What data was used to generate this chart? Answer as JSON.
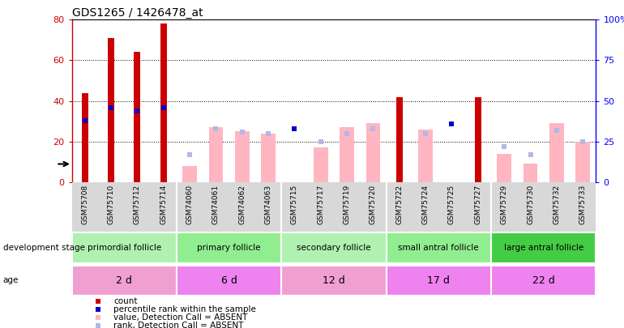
{
  "title": "GDS1265 / 1426478_at",
  "samples": [
    "GSM75708",
    "GSM75710",
    "GSM75712",
    "GSM75714",
    "GSM74060",
    "GSM74061",
    "GSM74062",
    "GSM74063",
    "GSM75715",
    "GSM75717",
    "GSM75719",
    "GSM75720",
    "GSM75722",
    "GSM75724",
    "GSM75725",
    "GSM75727",
    "GSM75729",
    "GSM75730",
    "GSM75732",
    "GSM75733"
  ],
  "count": [
    44,
    71,
    64,
    78,
    0,
    0,
    0,
    0,
    0,
    0,
    0,
    0,
    42,
    0,
    0,
    42,
    0,
    0,
    0,
    0
  ],
  "percentile_rank": [
    38,
    46,
    44,
    46,
    0,
    0,
    0,
    0,
    33,
    0,
    0,
    0,
    0,
    0,
    36,
    0,
    0,
    0,
    0,
    0
  ],
  "value_absent": [
    0,
    0,
    0,
    0,
    8,
    27,
    25,
    24,
    0,
    17,
    27,
    29,
    0,
    26,
    0,
    0,
    14,
    9,
    29,
    20
  ],
  "rank_absent": [
    0,
    0,
    0,
    0,
    17,
    33,
    31,
    30,
    0,
    25,
    30,
    33,
    0,
    30,
    0,
    0,
    22,
    17,
    32,
    25
  ],
  "group_names": [
    "primordial follicle",
    "primary follicle",
    "secondary follicle",
    "small antral follicle",
    "large antral follicle"
  ],
  "group_starts": [
    0,
    4,
    8,
    12,
    16
  ],
  "group_ends": [
    4,
    8,
    12,
    16,
    20
  ],
  "group_dev_colors": [
    "#b0f0b0",
    "#90ee90",
    "#b0f0b0",
    "#90ee90",
    "#44cc44"
  ],
  "group_age_labels": [
    "2 d",
    "6 d",
    "12 d",
    "17 d",
    "22 d"
  ],
  "group_age_colors": [
    "#f0a0d0",
    "#ee82ee",
    "#f0a0d0",
    "#ee82ee",
    "#ee82ee"
  ],
  "ylim_left": [
    0,
    80
  ],
  "ylim_right": [
    0,
    100
  ],
  "yticks_left": [
    0,
    20,
    40,
    60,
    80
  ],
  "yticks_right": [
    0,
    25,
    50,
    75,
    100
  ],
  "count_color": "#cc0000",
  "rank_color": "#0000cc",
  "value_absent_color": "#ffb6c1",
  "rank_absent_color": "#b0b8e8",
  "legend_items": [
    "count",
    "percentile rank within the sample",
    "value, Detection Call = ABSENT",
    "rank, Detection Call = ABSENT"
  ],
  "xtick_bg": "#d8d8d8"
}
